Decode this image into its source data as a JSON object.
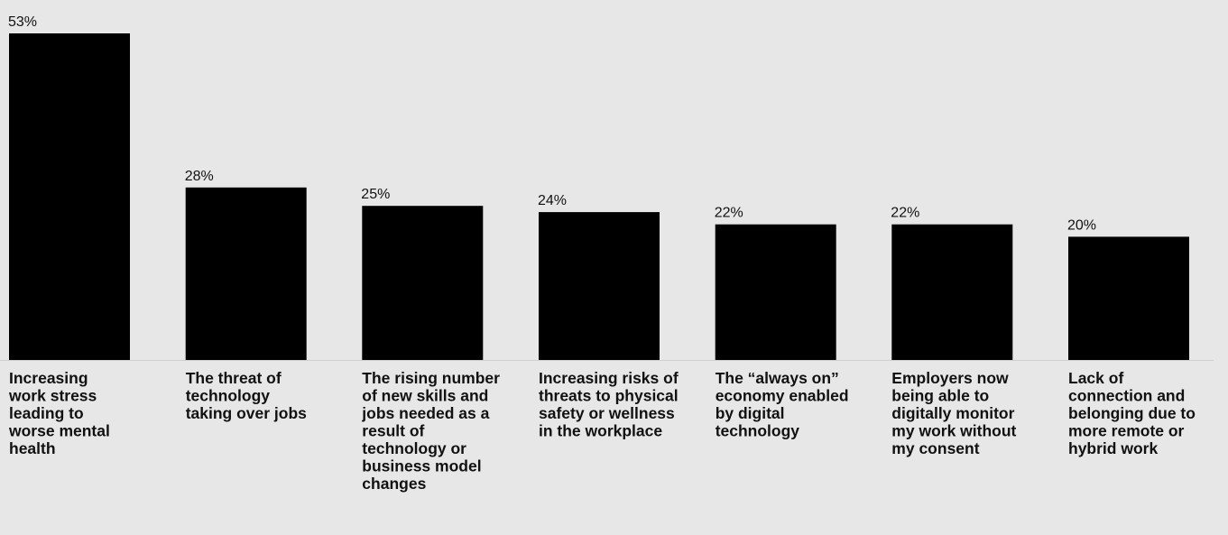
{
  "chart_data": {
    "type": "bar",
    "title": "",
    "xlabel": "",
    "ylabel": "",
    "ylim": [
      0,
      53
    ],
    "grid": false,
    "colors": {
      "bar": "#000000",
      "background": "#e7e7e8",
      "baseline": "#cfcfd1",
      "text": "#111111"
    },
    "categories": [
      [
        "Increasing",
        "work stress",
        "leading to",
        "worse mental",
        "health"
      ],
      [
        "The threat of",
        "technology",
        "taking over jobs"
      ],
      [
        "The rising number",
        "of new skills and",
        "jobs needed as a",
        "result of",
        "technology or",
        "business model",
        "changes"
      ],
      [
        "Increasing risks of",
        "threats to physical",
        "safety or wellness",
        "in the workplace"
      ],
      [
        "The “always on”",
        "economy enabled",
        "by digital",
        "technology"
      ],
      [
        "Employers now",
        "being able to",
        "digitally monitor",
        "my work without",
        "my consent"
      ],
      [
        "Lack of",
        "connection and",
        "belonging due to",
        "more remote or",
        "hybrid work"
      ]
    ],
    "values": [
      53,
      28,
      25,
      24,
      22,
      22,
      20
    ],
    "value_labels": [
      "53%",
      "28%",
      "25%",
      "24%",
      "22%",
      "22%",
      "20%"
    ]
  }
}
